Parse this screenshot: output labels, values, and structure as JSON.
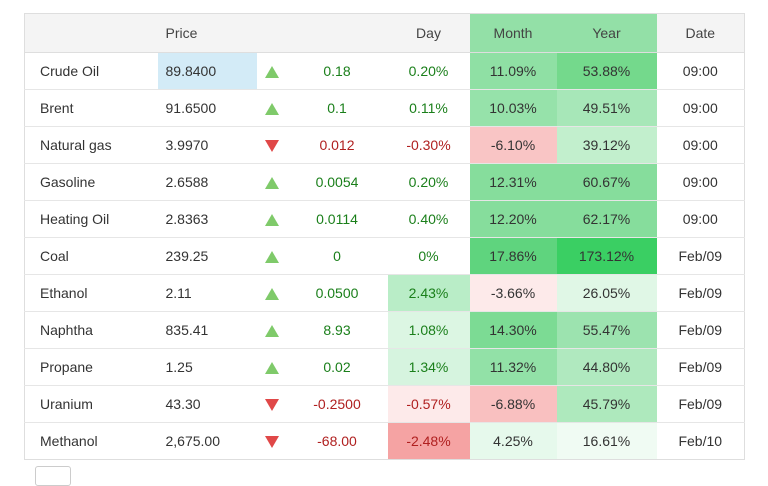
{
  "headers": {
    "name": "",
    "price": "Price",
    "arrow": "",
    "change": "",
    "day": "Day",
    "month": "Month",
    "year": "Year",
    "date": "Date"
  },
  "rows": [
    {
      "name": "Crude Oil",
      "price": "89.8400",
      "dir": "up",
      "change": "0.18",
      "day": "0.20%",
      "month": "11.09%",
      "year": "53.88%",
      "date": "09:00",
      "day_bg": "#ffffff",
      "month_bg": "#8fe0a4",
      "year_bg": "#74d98c",
      "price_hl": true
    },
    {
      "name": "Brent",
      "price": "91.6500",
      "dir": "up",
      "change": "0.1",
      "day": "0.11%",
      "month": "10.03%",
      "year": "49.51%",
      "date": "09:00",
      "day_bg": "#ffffff",
      "month_bg": "#96e2aa",
      "year_bg": "#a7e7b8",
      "price_hl": false
    },
    {
      "name": "Natural gas",
      "price": "3.9970",
      "dir": "down",
      "change": "0.012",
      "day": "-0.30%",
      "month": "-6.10%",
      "year": "39.12%",
      "date": "09:00",
      "day_bg": "#ffffff",
      "month_bg": "#f9c5c5",
      "year_bg": "#c2efcd",
      "price_hl": false
    },
    {
      "name": "Gasoline",
      "price": "2.6588",
      "dir": "up",
      "change": "0.0054",
      "day": "0.20%",
      "month": "12.31%",
      "year": "60.67%",
      "date": "09:00",
      "day_bg": "#ffffff",
      "month_bg": "#86dd9c",
      "year_bg": "#86dd9c",
      "price_hl": false
    },
    {
      "name": "Heating Oil",
      "price": "2.8363",
      "dir": "up",
      "change": "0.0114",
      "day": "0.40%",
      "month": "12.20%",
      "year": "62.17%",
      "date": "09:00",
      "day_bg": "#ffffff",
      "month_bg": "#86dd9c",
      "year_bg": "#86dd9c",
      "price_hl": false
    },
    {
      "name": "Coal",
      "price": "239.25",
      "dir": "up",
      "change": "0",
      "day": "0%",
      "month": "17.86%",
      "year": "173.12%",
      "date": "Feb/09",
      "day_bg": "#ffffff",
      "month_bg": "#5fd47e",
      "year_bg": "#3acf63",
      "price_hl": false
    },
    {
      "name": "Ethanol",
      "price": "2.11",
      "dir": "up",
      "change": "0.0500",
      "day": "2.43%",
      "month": "-3.66%",
      "year": "26.05%",
      "date": "Feb/09",
      "day_bg": "#b9edc7",
      "month_bg": "#fdeaea",
      "year_bg": "#e0f7e6",
      "price_hl": false
    },
    {
      "name": "Naphtha",
      "price": "835.41",
      "dir": "up",
      "change": "8.93",
      "day": "1.08%",
      "month": "14.30%",
      "year": "55.47%",
      "date": "Feb/09",
      "day_bg": "#dcf6e3",
      "month_bg": "#7cdb94",
      "year_bg": "#9ce3af",
      "price_hl": false
    },
    {
      "name": "Propane",
      "price": "1.25",
      "dir": "up",
      "change": "0.02",
      "day": "1.34%",
      "month": "11.32%",
      "year": "44.80%",
      "date": "Feb/09",
      "day_bg": "#d6f4df",
      "month_bg": "#92e1a7",
      "year_bg": "#b0e9bf",
      "price_hl": false
    },
    {
      "name": "Uranium",
      "price": "43.30",
      "dir": "down",
      "change": "-0.2500",
      "day": "-0.57%",
      "month": "-6.88%",
      "year": "45.79%",
      "date": "Feb/09",
      "day_bg": "#fdeaea",
      "month_bg": "#f9c0c0",
      "year_bg": "#aee9bd",
      "price_hl": false
    },
    {
      "name": "Methanol",
      "price": "2,675.00",
      "dir": "down",
      "change": "-68.00",
      "day": "-2.48%",
      "month": "4.25%",
      "year": "16.61%",
      "date": "Feb/10",
      "day_bg": "#f5a3a3",
      "month_bg": "#e6f9ec",
      "year_bg": "#f0fbf3",
      "price_hl": false
    }
  ]
}
